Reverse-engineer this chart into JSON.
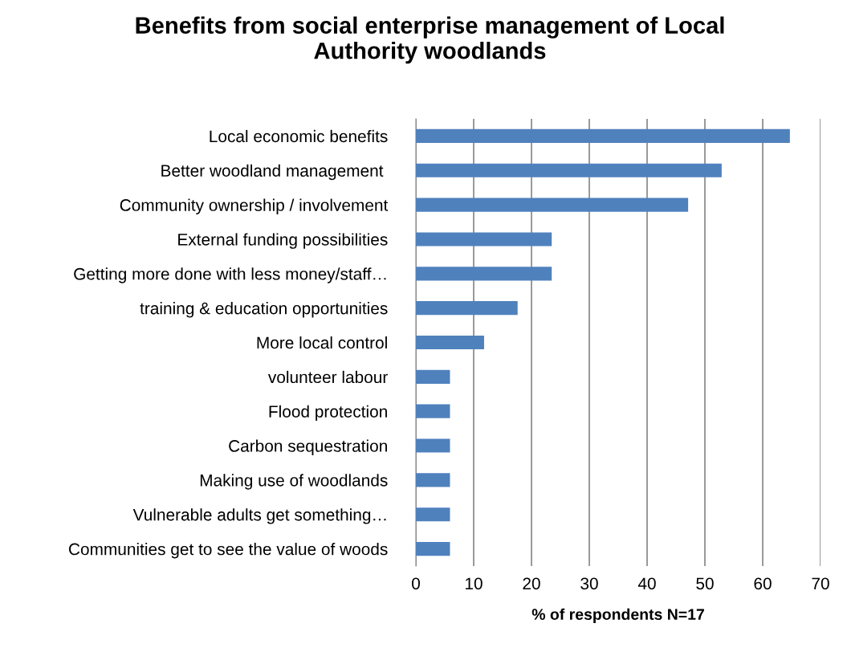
{
  "chart_data": {
    "type": "bar",
    "orientation": "horizontal",
    "title": "Benefits from social enterprise management of Local\nAuthority woodlands",
    "xlabel": "% of respondents N=17",
    "categories": [
      "Local economic benefits",
      "Better woodland management ",
      "Community ownership / involvement",
      "External funding possibilities",
      "Getting more done with less money/staff…",
      "training & education opportunities",
      "More local control",
      "volunteer labour",
      "Flood protection",
      "Carbon sequestration",
      "Making use of woodlands",
      "Vulnerable adults get something…",
      "Communities get to see the value of woods"
    ],
    "values": [
      64.7,
      52.9,
      47.1,
      23.5,
      23.5,
      17.6,
      11.8,
      5.9,
      5.9,
      5.9,
      5.9,
      5.9,
      5.9
    ],
    "color": "#4f81bd",
    "xlim": [
      0,
      70
    ],
    "xticks": [
      0,
      10,
      20,
      30,
      40,
      50,
      60,
      70
    ],
    "grid": "x",
    "legend": false
  }
}
